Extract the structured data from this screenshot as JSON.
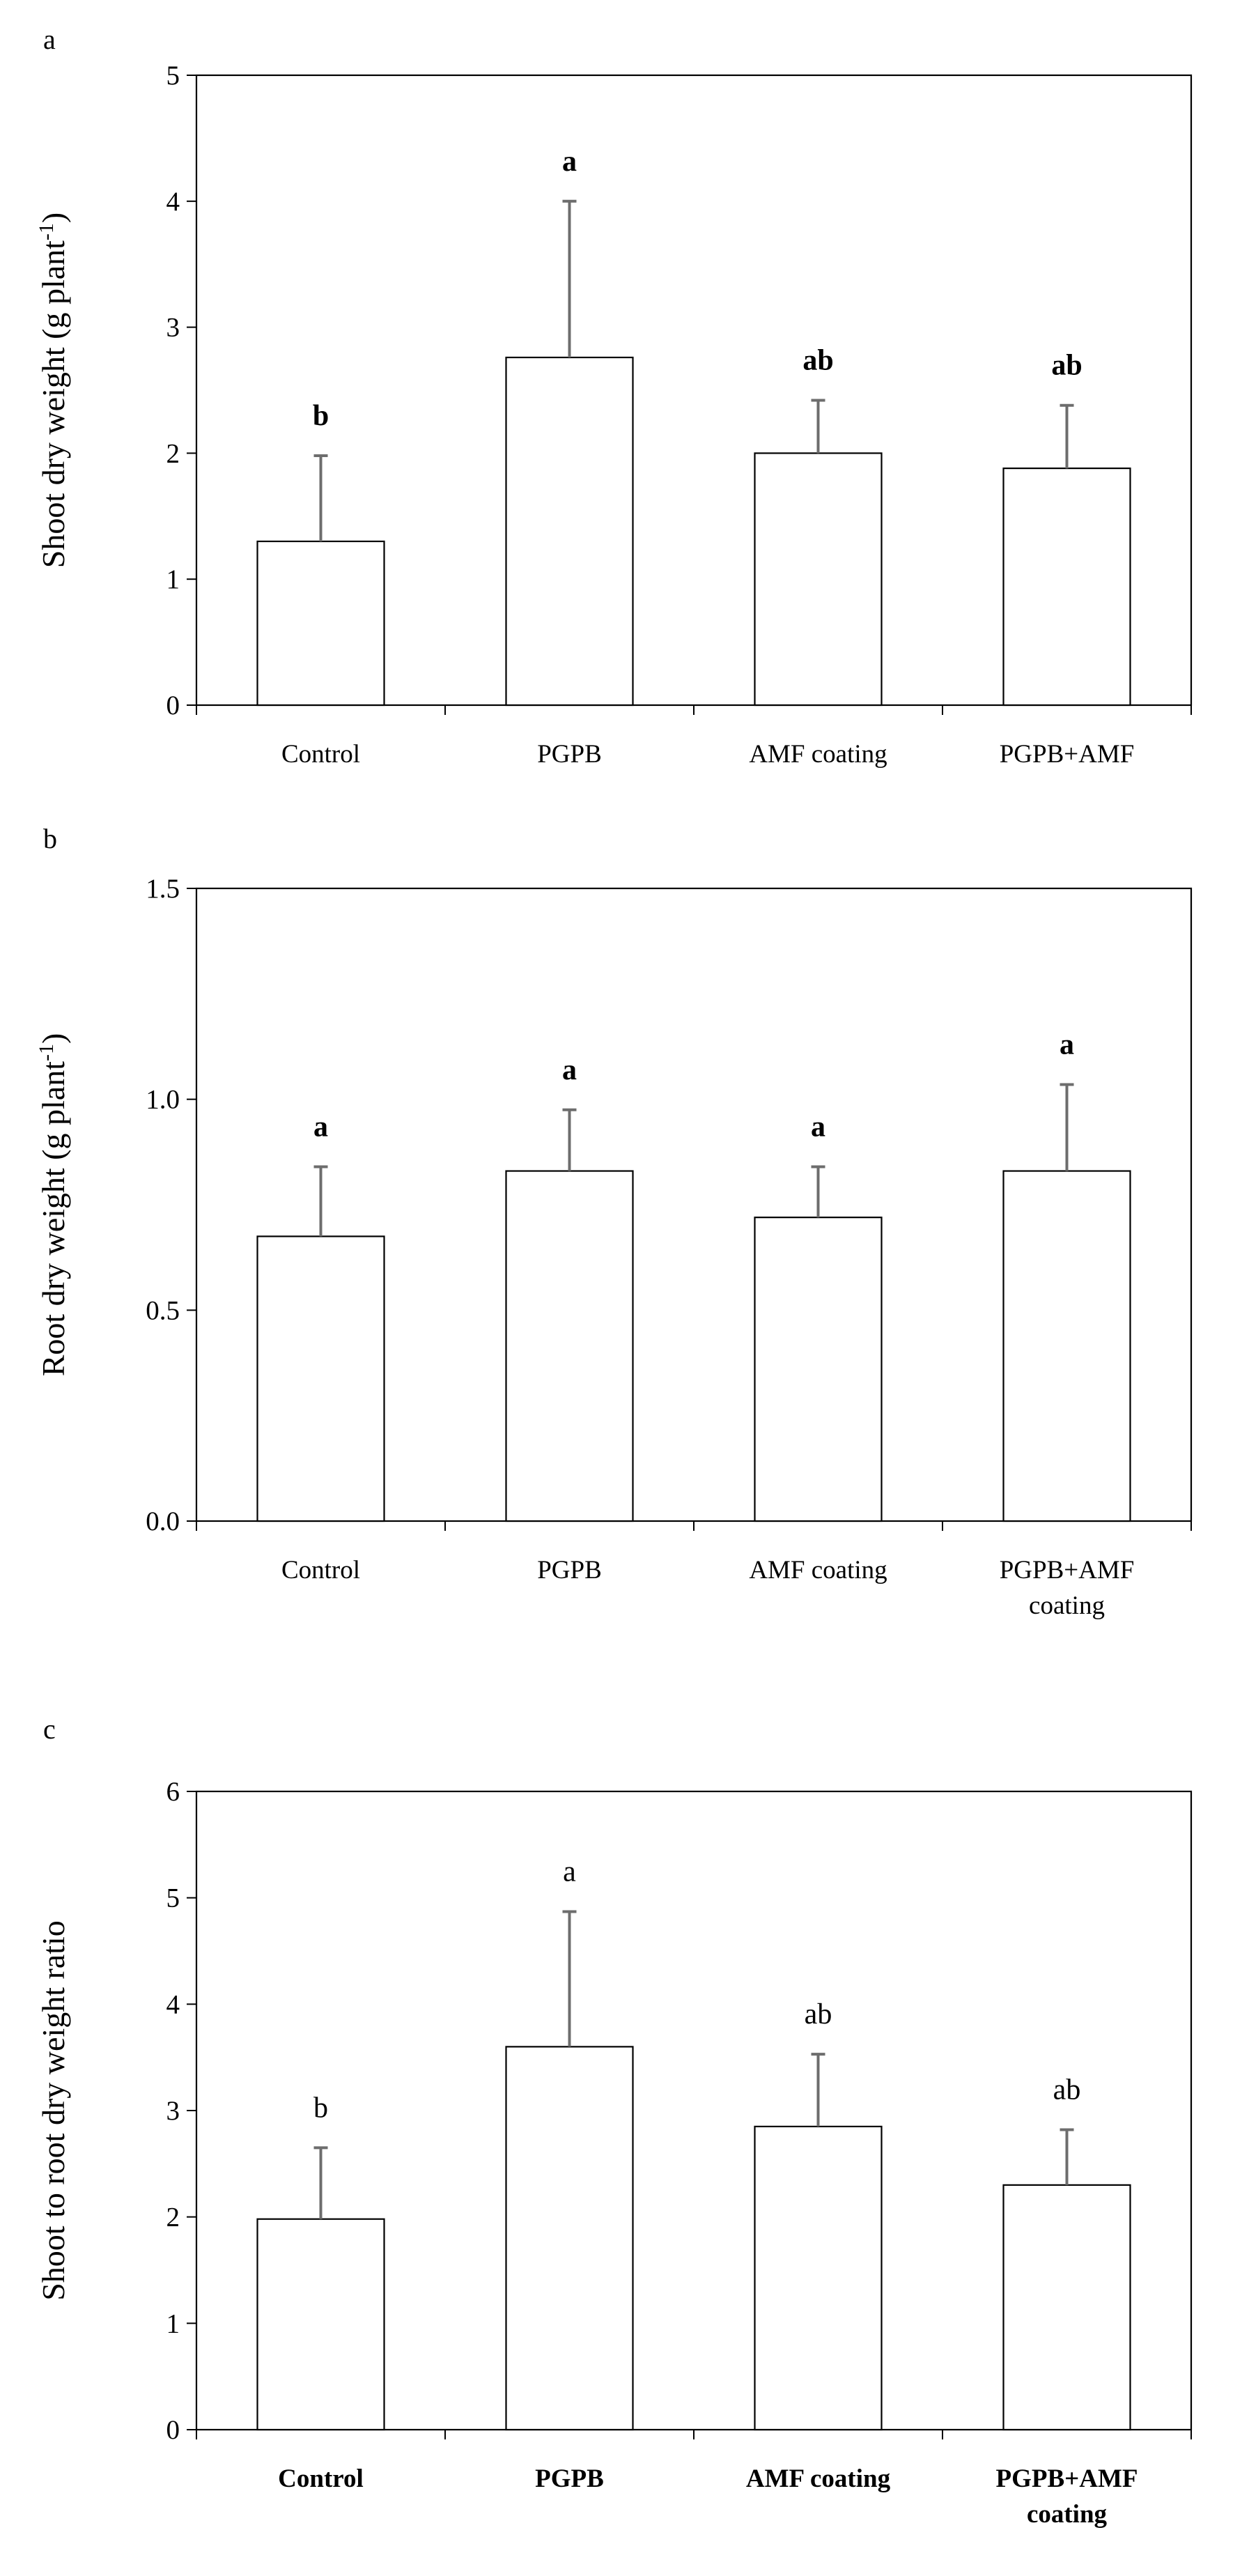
{
  "chart_data": [
    {
      "type": "bar",
      "panel_label": "a",
      "title": "",
      "ylabel": "Shoot dry weight (g plant",
      "ylabel_sup": "-1",
      "ylabel_end": ")",
      "ylim": [
        0,
        5
      ],
      "yticks": [
        "0",
        "1",
        "2",
        "3",
        "4",
        "5"
      ],
      "categories": [
        [
          "Control"
        ],
        [
          "PGPB"
        ],
        [
          "AMF coating"
        ],
        [
          "PGPB+AMF"
        ]
      ],
      "values": [
        1.3,
        2.76,
        2.0,
        1.88
      ],
      "errors": [
        0.68,
        1.24,
        0.42,
        0.5
      ],
      "significance": [
        "b",
        "a",
        "ab",
        "ab"
      ],
      "significance_bold": true,
      "category_bold": false
    },
    {
      "type": "bar",
      "panel_label": "b",
      "title": "",
      "ylabel": "Root dry weight (g plant",
      "ylabel_sup": "-1",
      "ylabel_end": ")",
      "ylim": [
        0,
        1.5
      ],
      "yticks": [
        "0.0",
        "0.5",
        "1.0",
        "1.5"
      ],
      "categories": [
        [
          "Control"
        ],
        [
          "PGPB"
        ],
        [
          "AMF coating"
        ],
        [
          "PGPB+AMF",
          "coating"
        ]
      ],
      "values": [
        0.675,
        0.83,
        0.72,
        0.83
      ],
      "errors": [
        0.165,
        0.145,
        0.12,
        0.205
      ],
      "significance": [
        "a",
        "a",
        "a",
        "a"
      ],
      "significance_bold": true,
      "category_bold": false
    },
    {
      "type": "bar",
      "panel_label": "c",
      "title": "",
      "ylabel": "Shoot to root dry weight ratio",
      "ylabel_sup": "",
      "ylabel_end": "",
      "ylim": [
        0,
        6
      ],
      "yticks": [
        "0",
        "1",
        "2",
        "3",
        "4",
        "5",
        "6"
      ],
      "categories": [
        [
          "Control"
        ],
        [
          "PGPB"
        ],
        [
          "AMF coating"
        ],
        [
          "PGPB+AMF",
          "coating"
        ]
      ],
      "values": [
        1.98,
        3.6,
        2.85,
        2.3
      ],
      "errors": [
        0.67,
        1.27,
        0.68,
        0.52
      ],
      "significance": [
        "b",
        "a",
        "ab",
        "ab"
      ],
      "significance_bold": false,
      "category_bold": true
    }
  ]
}
